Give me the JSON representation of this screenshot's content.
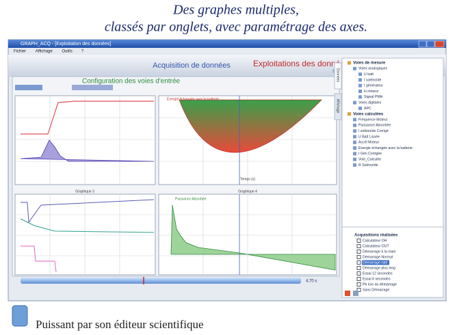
{
  "caption": {
    "line1": "Des graphes multiples,",
    "line2": "classés par onglets, avec paramétrage des axes."
  },
  "window": {
    "title": "GRAPH_ACQ - [Exploitation des données]",
    "menu": [
      "Fichier",
      "Affichage",
      "Outils",
      "?"
    ],
    "tabs": [
      "Acquisition de données",
      "Exploitations des données"
    ],
    "panel_title": "Configuration des voies d'entrée",
    "side_tabs": [
      "Données",
      "Affichage"
    ],
    "charts": {
      "titles": [
        "Energie échangée avec la batterie",
        "Graphique 3",
        "Graphique 4",
        "Puissance Absorbée"
      ],
      "x_label": "Temps (s)"
    },
    "time": "4,70 s",
    "tree": [
      "Voies de mesure",
      "Voies analogiques",
      "U batt",
      "I solénoïde",
      "I générateur",
      "H moteur",
      "Signal PMH",
      "Voies digitales",
      "APC",
      "Voies calculées",
      "Fréquence Moteur",
      "Puissance Absorbée",
      "I solénoïde Corrigé",
      "U Batt Lissée",
      "Accél Moteur",
      "Energie échangée avec la batterie",
      "I Gén Corrigée",
      "Voie_Calculée",
      "R Solénoïde"
    ],
    "acquisitions": [
      "Acquisitions réalisées",
      "Calculateur OH",
      "Calculateur OUT",
      "Démarrage à la main",
      "Démarrage Normal",
      "Démarrage raté",
      "Démarrage plus long",
      "Essai 12 secondes",
      "Essai 6 secondes",
      "Pb lors du démarrage",
      "Sans Démarrage"
    ]
  },
  "footer": {
    "text": "Puissant par son éditeur scientifique"
  }
}
